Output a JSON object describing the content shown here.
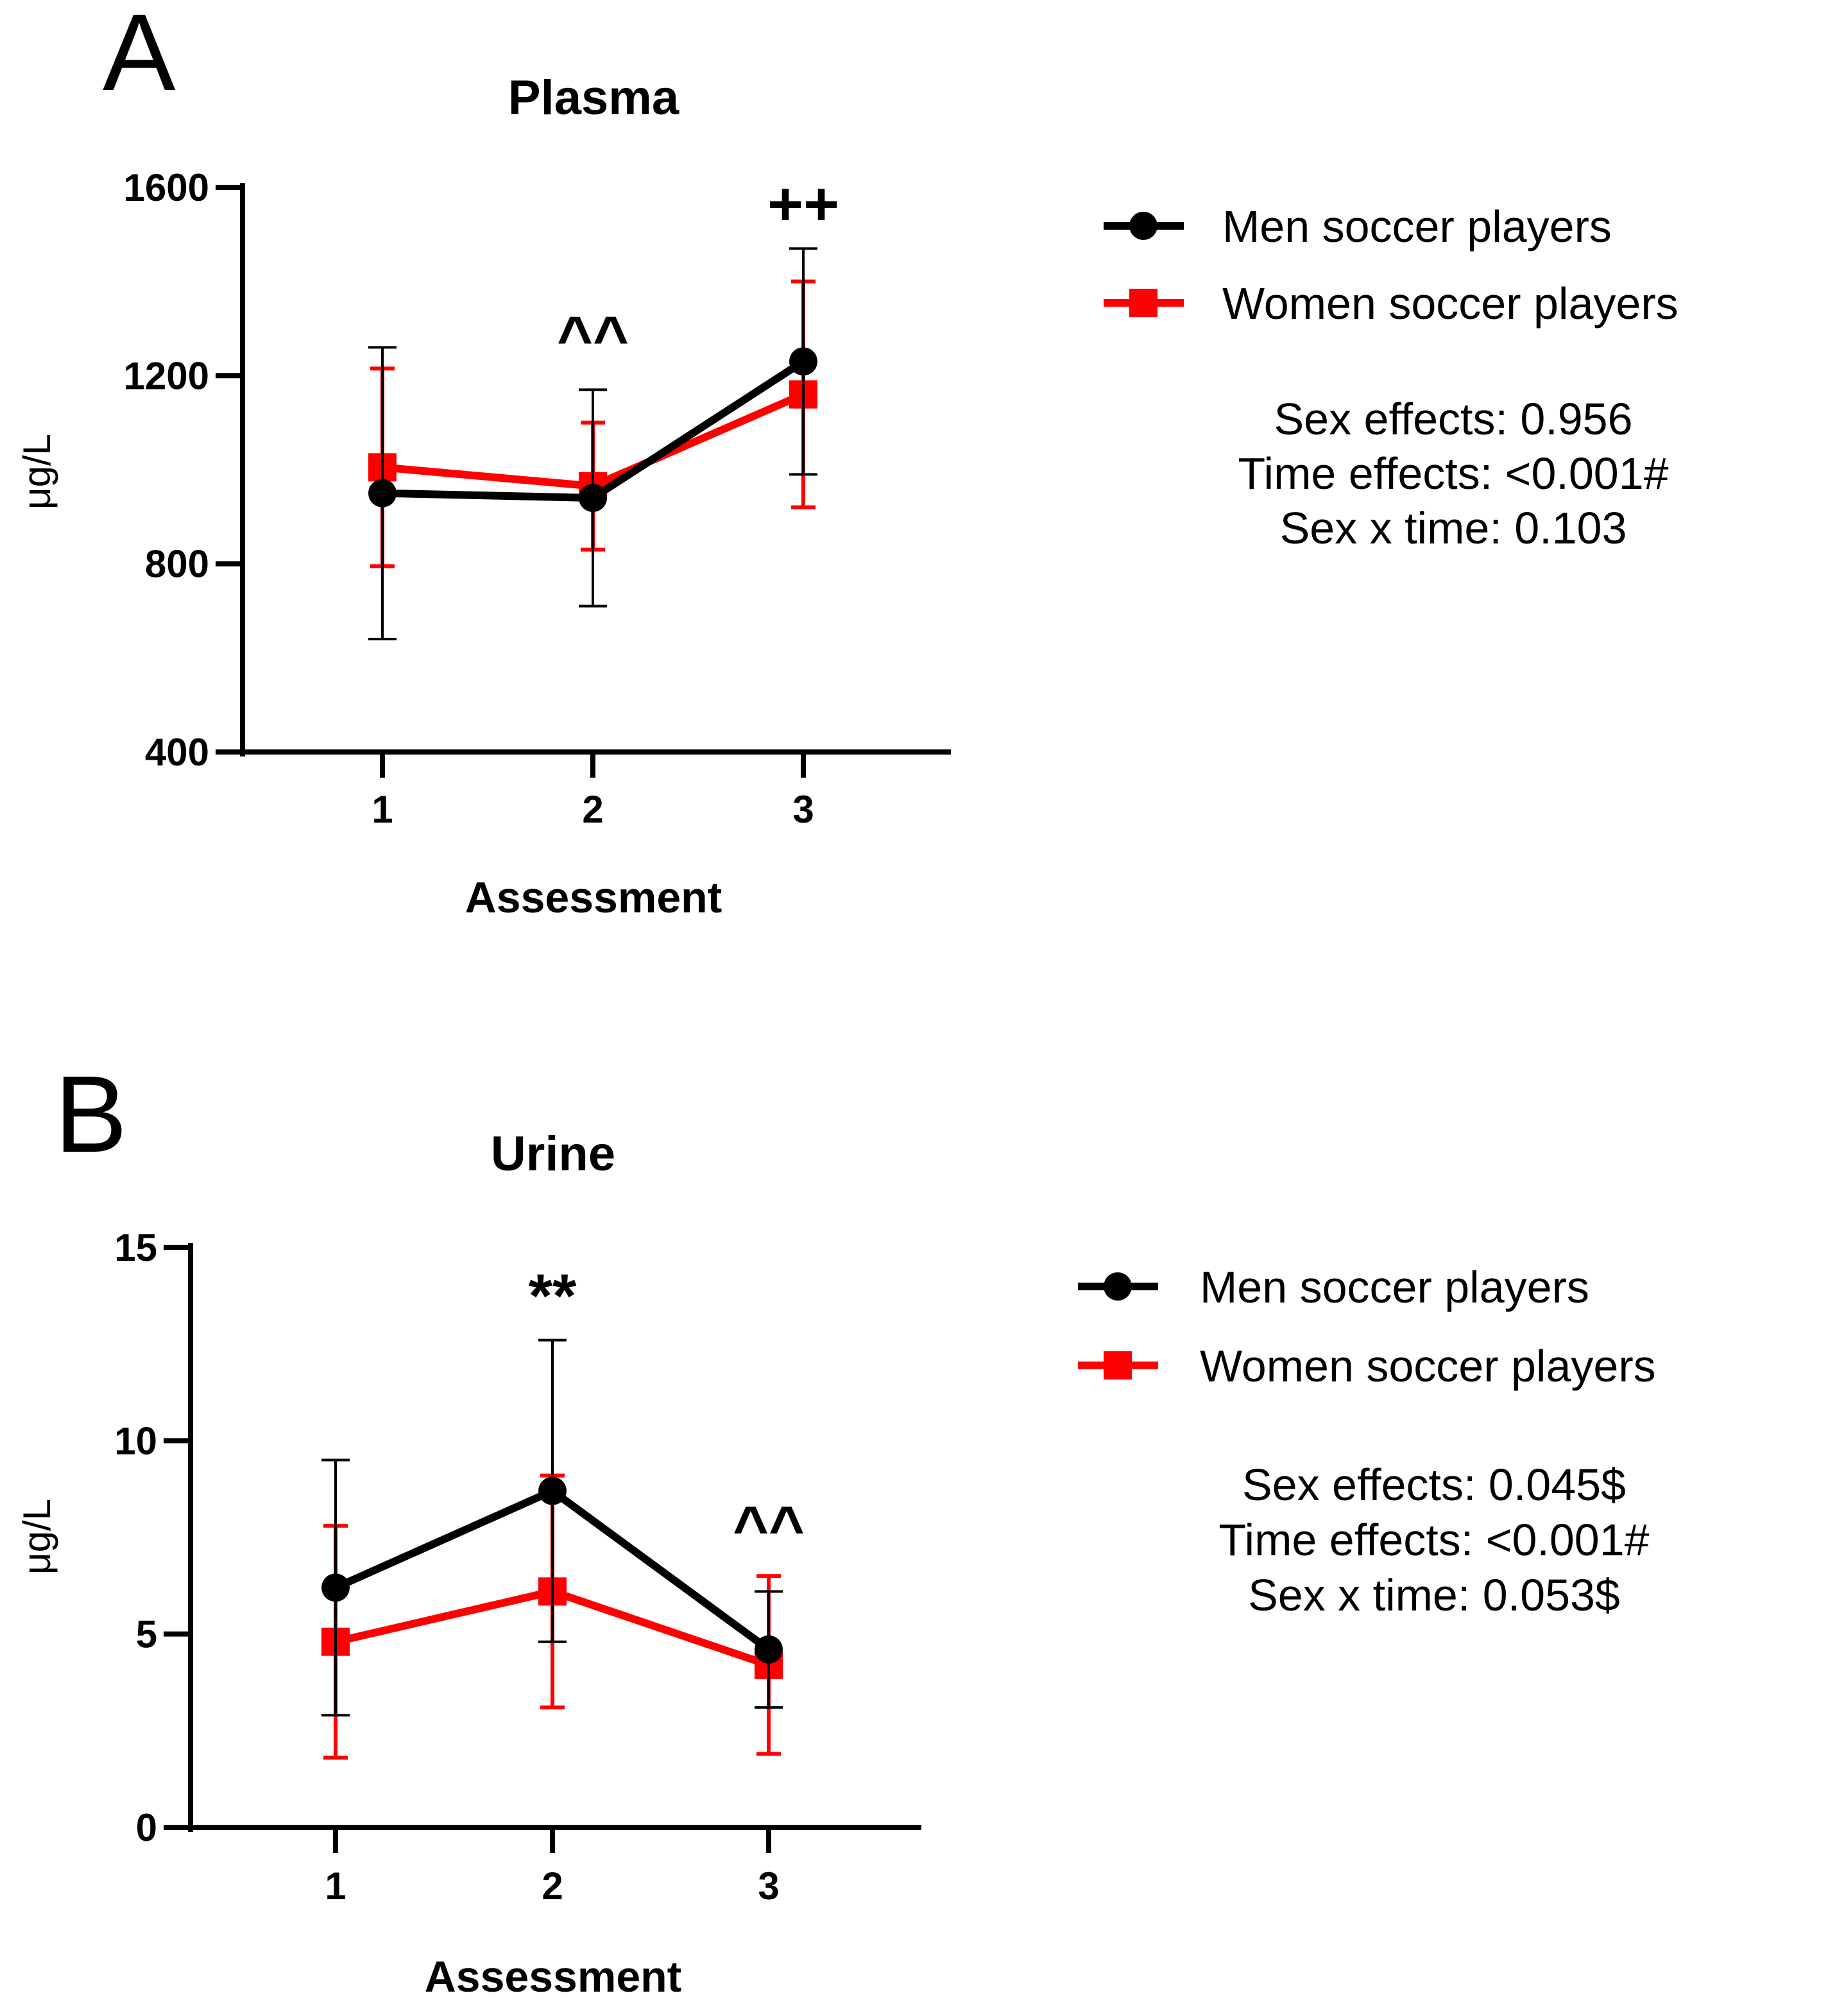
{
  "colors": {
    "men": "#000000",
    "women": "#ff0000",
    "axis": "#000000"
  },
  "chart_data": [
    {
      "type": "line",
      "panel_letter": "A",
      "title": "Plasma",
      "xlabel": "Assessment",
      "ylabel": "μg/L",
      "categories": [
        "1",
        "2",
        "3"
      ],
      "ylim": [
        400,
        1600
      ],
      "yticks": [
        400,
        800,
        1200,
        1600
      ],
      "series": [
        {
          "name": "Men soccer players",
          "marker": "circle",
          "color": "#000000",
          "values": [
            950,
            940,
            1230
          ],
          "errors": [
            310,
            230,
            240
          ]
        },
        {
          "name": "Women soccer players",
          "marker": "square",
          "color": "#ff0000",
          "values": [
            1005,
            965,
            1160
          ],
          "errors": [
            210,
            135,
            240
          ]
        }
      ],
      "annotations": [
        {
          "text": "^^",
          "category": "2",
          "y": 1235
        },
        {
          "text": "++",
          "category": "3",
          "y": 1520
        }
      ],
      "stats": [
        "Sex effects: 0.956",
        "Time effects: <0.001#",
        "Sex x time: 0.103"
      ]
    },
    {
      "type": "line",
      "panel_letter": "B",
      "title": "Urine",
      "xlabel": "Assessment",
      "ylabel": "μg/L",
      "categories": [
        "1",
        "2",
        "3"
      ],
      "ylim": [
        0,
        15
      ],
      "yticks": [
        0,
        5,
        10,
        15
      ],
      "series": [
        {
          "name": "Men soccer players",
          "marker": "circle",
          "color": "#000000",
          "values": [
            6.2,
            8.7,
            4.6
          ],
          "errors": [
            3.3,
            3.9,
            1.5
          ]
        },
        {
          "name": "Women soccer players",
          "marker": "square",
          "color": "#ff0000",
          "values": [
            4.8,
            6.1,
            4.2
          ],
          "errors": [
            3.0,
            3.0,
            2.3
          ]
        }
      ],
      "annotations": [
        {
          "text": "**",
          "category": "2",
          "y": 13.2
        },
        {
          "text": "^^",
          "category": "3",
          "y": 7.2
        }
      ],
      "stats": [
        "Sex effects: 0.045$",
        "Time effects: <0.001#",
        "Sex x time: 0.053$"
      ]
    }
  ]
}
